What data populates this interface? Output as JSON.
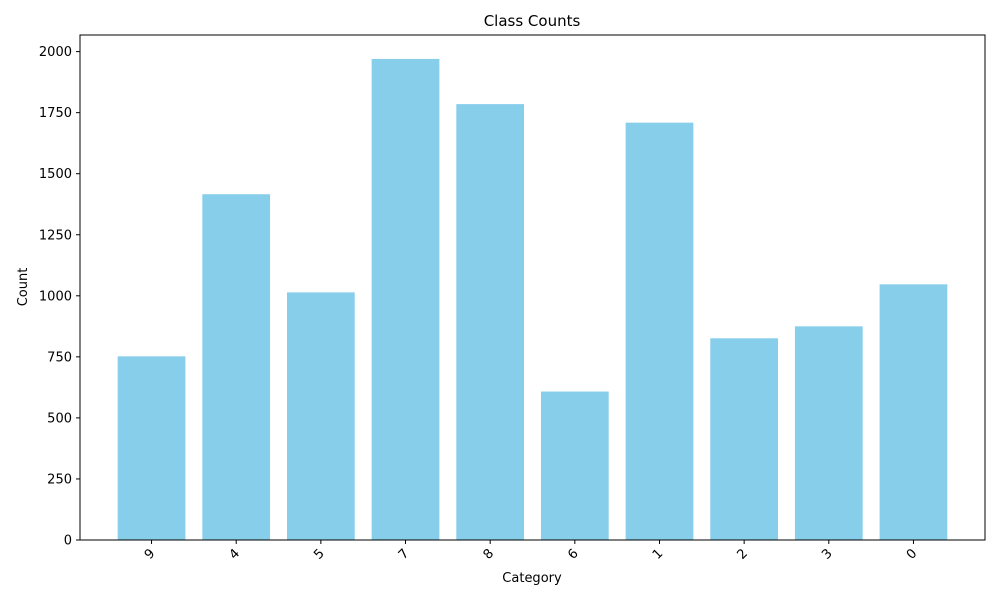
{
  "chart_data": {
    "type": "bar",
    "title": "Class Counts",
    "xlabel": "Category",
    "ylabel": "Count",
    "categories": [
      "9",
      "4",
      "5",
      "7",
      "8",
      "6",
      "1",
      "2",
      "3",
      "0"
    ],
    "values": [
      752,
      1416,
      1014,
      1970,
      1785,
      608,
      1709,
      826,
      875,
      1047
    ],
    "ylim": [
      0,
      2068
    ],
    "yticks": [
      0,
      250,
      500,
      750,
      1000,
      1250,
      1500,
      1750,
      2000
    ],
    "bar_color": "#87ceeb",
    "grid": false,
    "xtick_rotation": "45 degrees"
  }
}
